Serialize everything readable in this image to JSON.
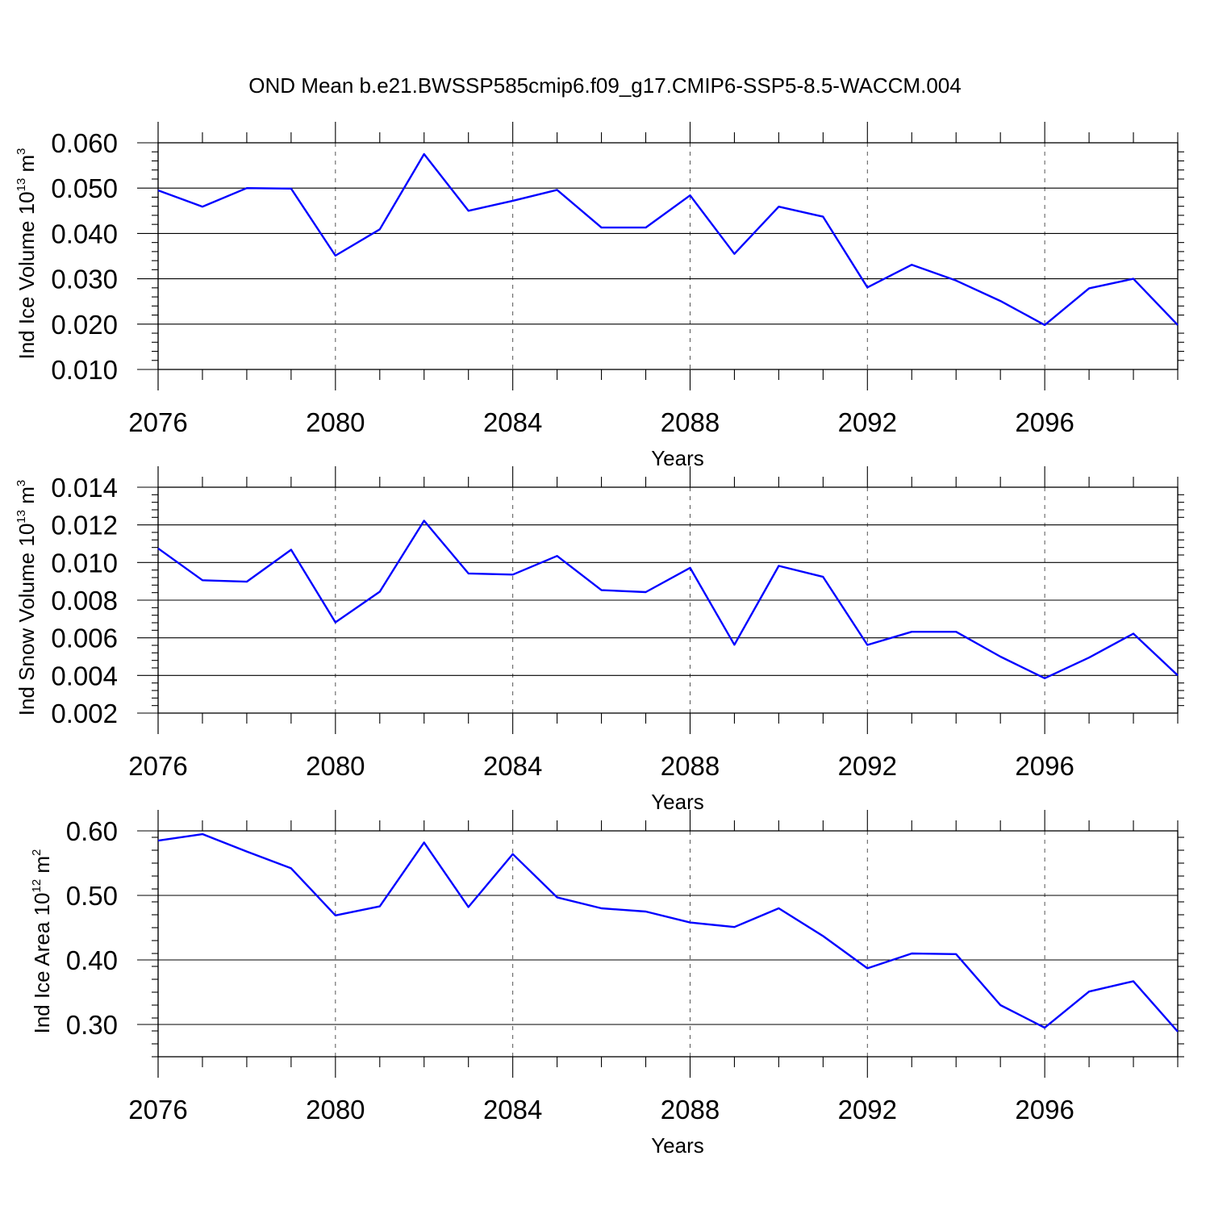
{
  "title": "OND Mean b.e21.BWSSP585cmip6.f09_g17.CMIP6-SSP5-8.5-WACCM.004",
  "colors": {
    "line": "#0000ff",
    "axes": "#000000",
    "grid": "#555555"
  },
  "chart_data": [
    {
      "type": "line",
      "ylabel": {
        "text": "Ind Ice Volume 10",
        "sup1": "13",
        "unit": " m",
        "sup2": "3"
      },
      "xlabel": "Years",
      "xlim": [
        2076,
        2099
      ],
      "ylim": [
        0.01,
        0.06
      ],
      "xticks": [
        2076,
        2080,
        2084,
        2088,
        2092,
        2096
      ],
      "xtick_labels": [
        "2076",
        "2080",
        "2084",
        "2088",
        "2092",
        "2096"
      ],
      "yticks": [
        0.01,
        0.02,
        0.03,
        0.04,
        0.05,
        0.06
      ],
      "ytick_labels": [
        "0.010",
        "0.020",
        "0.030",
        "0.040",
        "0.050",
        "0.060"
      ],
      "grid": "dashed vertical at major x ticks",
      "x": [
        2076,
        2077,
        2078,
        2079,
        2080,
        2081,
        2082,
        2083,
        2084,
        2085,
        2086,
        2087,
        2088,
        2089,
        2090,
        2091,
        2092,
        2093,
        2094,
        2095,
        2096,
        2097,
        2098,
        2099
      ],
      "values": [
        0.0495,
        0.0459,
        0.05,
        0.0499,
        0.0351,
        0.0409,
        0.0575,
        0.045,
        0.0472,
        0.0496,
        0.0413,
        0.0413,
        0.0484,
        0.0355,
        0.0459,
        0.0437,
        0.0281,
        0.0331,
        0.0296,
        0.0251,
        0.0198,
        0.0279,
        0.03,
        0.0198
      ]
    },
    {
      "type": "line",
      "ylabel": {
        "text": "Ind Snow Volume 10",
        "sup1": "13",
        "unit": " m",
        "sup2": "3"
      },
      "xlabel": "Years",
      "xlim": [
        2076,
        2099
      ],
      "ylim": [
        0.002,
        0.014
      ],
      "xticks": [
        2076,
        2080,
        2084,
        2088,
        2092,
        2096
      ],
      "xtick_labels": [
        "2076",
        "2080",
        "2084",
        "2088",
        "2092",
        "2096"
      ],
      "yticks": [
        0.002,
        0.004,
        0.006,
        0.008,
        0.01,
        0.012,
        0.014
      ],
      "ytick_labels": [
        "0.002",
        "0.004",
        "0.006",
        "0.008",
        "0.010",
        "0.012",
        "0.014"
      ],
      "grid": "dashed vertical at major x ticks",
      "x": [
        2076,
        2077,
        2078,
        2079,
        2080,
        2081,
        2082,
        2083,
        2084,
        2085,
        2086,
        2087,
        2088,
        2089,
        2090,
        2091,
        2092,
        2093,
        2094,
        2095,
        2096,
        2097,
        2098,
        2099
      ],
      "values": [
        0.01075,
        0.00906,
        0.00898,
        0.01068,
        0.00682,
        0.00845,
        0.01222,
        0.00942,
        0.00936,
        0.01035,
        0.00853,
        0.00843,
        0.00972,
        0.00563,
        0.00982,
        0.00924,
        0.00562,
        0.00632,
        0.00632,
        0.005,
        0.00385,
        0.00495,
        0.00622,
        0.004
      ]
    },
    {
      "type": "line",
      "ylabel": {
        "text": "Ind Ice Area 10",
        "sup1": "12",
        "unit": " m",
        "sup2": "2"
      },
      "xlabel": "Years",
      "xlim": [
        2076,
        2099
      ],
      "ylim": [
        0.25,
        0.6
      ],
      "xticks": [
        2076,
        2080,
        2084,
        2088,
        2092,
        2096
      ],
      "xtick_labels": [
        "2076",
        "2080",
        "2084",
        "2088",
        "2092",
        "2096"
      ],
      "yticks": [
        0.3,
        0.4,
        0.5,
        0.6
      ],
      "ytick_labels": [
        "0.30",
        "0.40",
        "0.50",
        "0.60"
      ],
      "grid": "dashed vertical at major x ticks",
      "x": [
        2076,
        2077,
        2078,
        2079,
        2080,
        2081,
        2082,
        2083,
        2084,
        2085,
        2086,
        2087,
        2088,
        2089,
        2090,
        2091,
        2092,
        2093,
        2094,
        2095,
        2096,
        2097,
        2098,
        2099
      ],
      "values": [
        0.585,
        0.595,
        0.568,
        0.542,
        0.469,
        0.483,
        0.582,
        0.482,
        0.564,
        0.497,
        0.48,
        0.475,
        0.458,
        0.451,
        0.48,
        0.437,
        0.387,
        0.41,
        0.409,
        0.33,
        0.295,
        0.351,
        0.367,
        0.289
      ]
    }
  ]
}
